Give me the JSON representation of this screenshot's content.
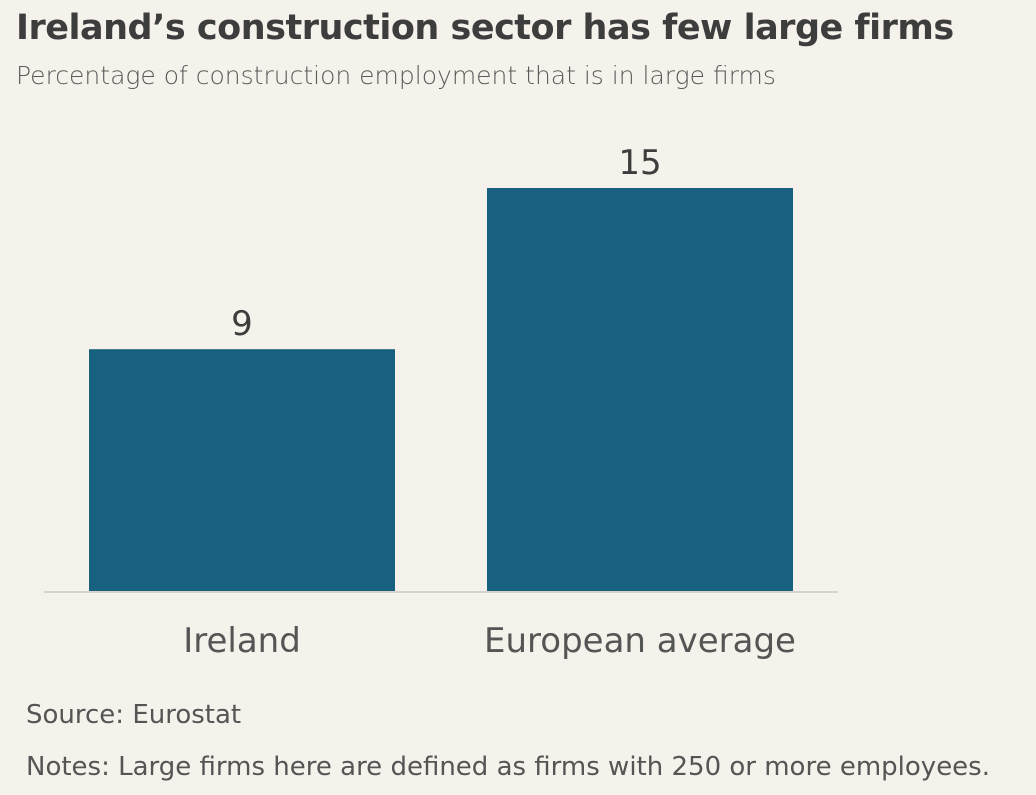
{
  "title": "Ireland’s construction sector has few large firms",
  "subtitle": "Percentage of construction employment that is in large firms",
  "chart_data": {
    "type": "bar",
    "categories": [
      "Ireland",
      "European average"
    ],
    "values": [
      9,
      15
    ],
    "data_labels": [
      "9",
      "15"
    ],
    "ylim": [
      0,
      16
    ],
    "grid": false,
    "bar_color": "#17607f"
  },
  "footer": {
    "source": "Source: Eurostat",
    "notes": "Notes: Large firms here are defined as firms with 250 or more employees."
  },
  "colors": {
    "background": "#f5f1eb",
    "bar": "#17607f",
    "baseline": "#d6d2cc"
  }
}
